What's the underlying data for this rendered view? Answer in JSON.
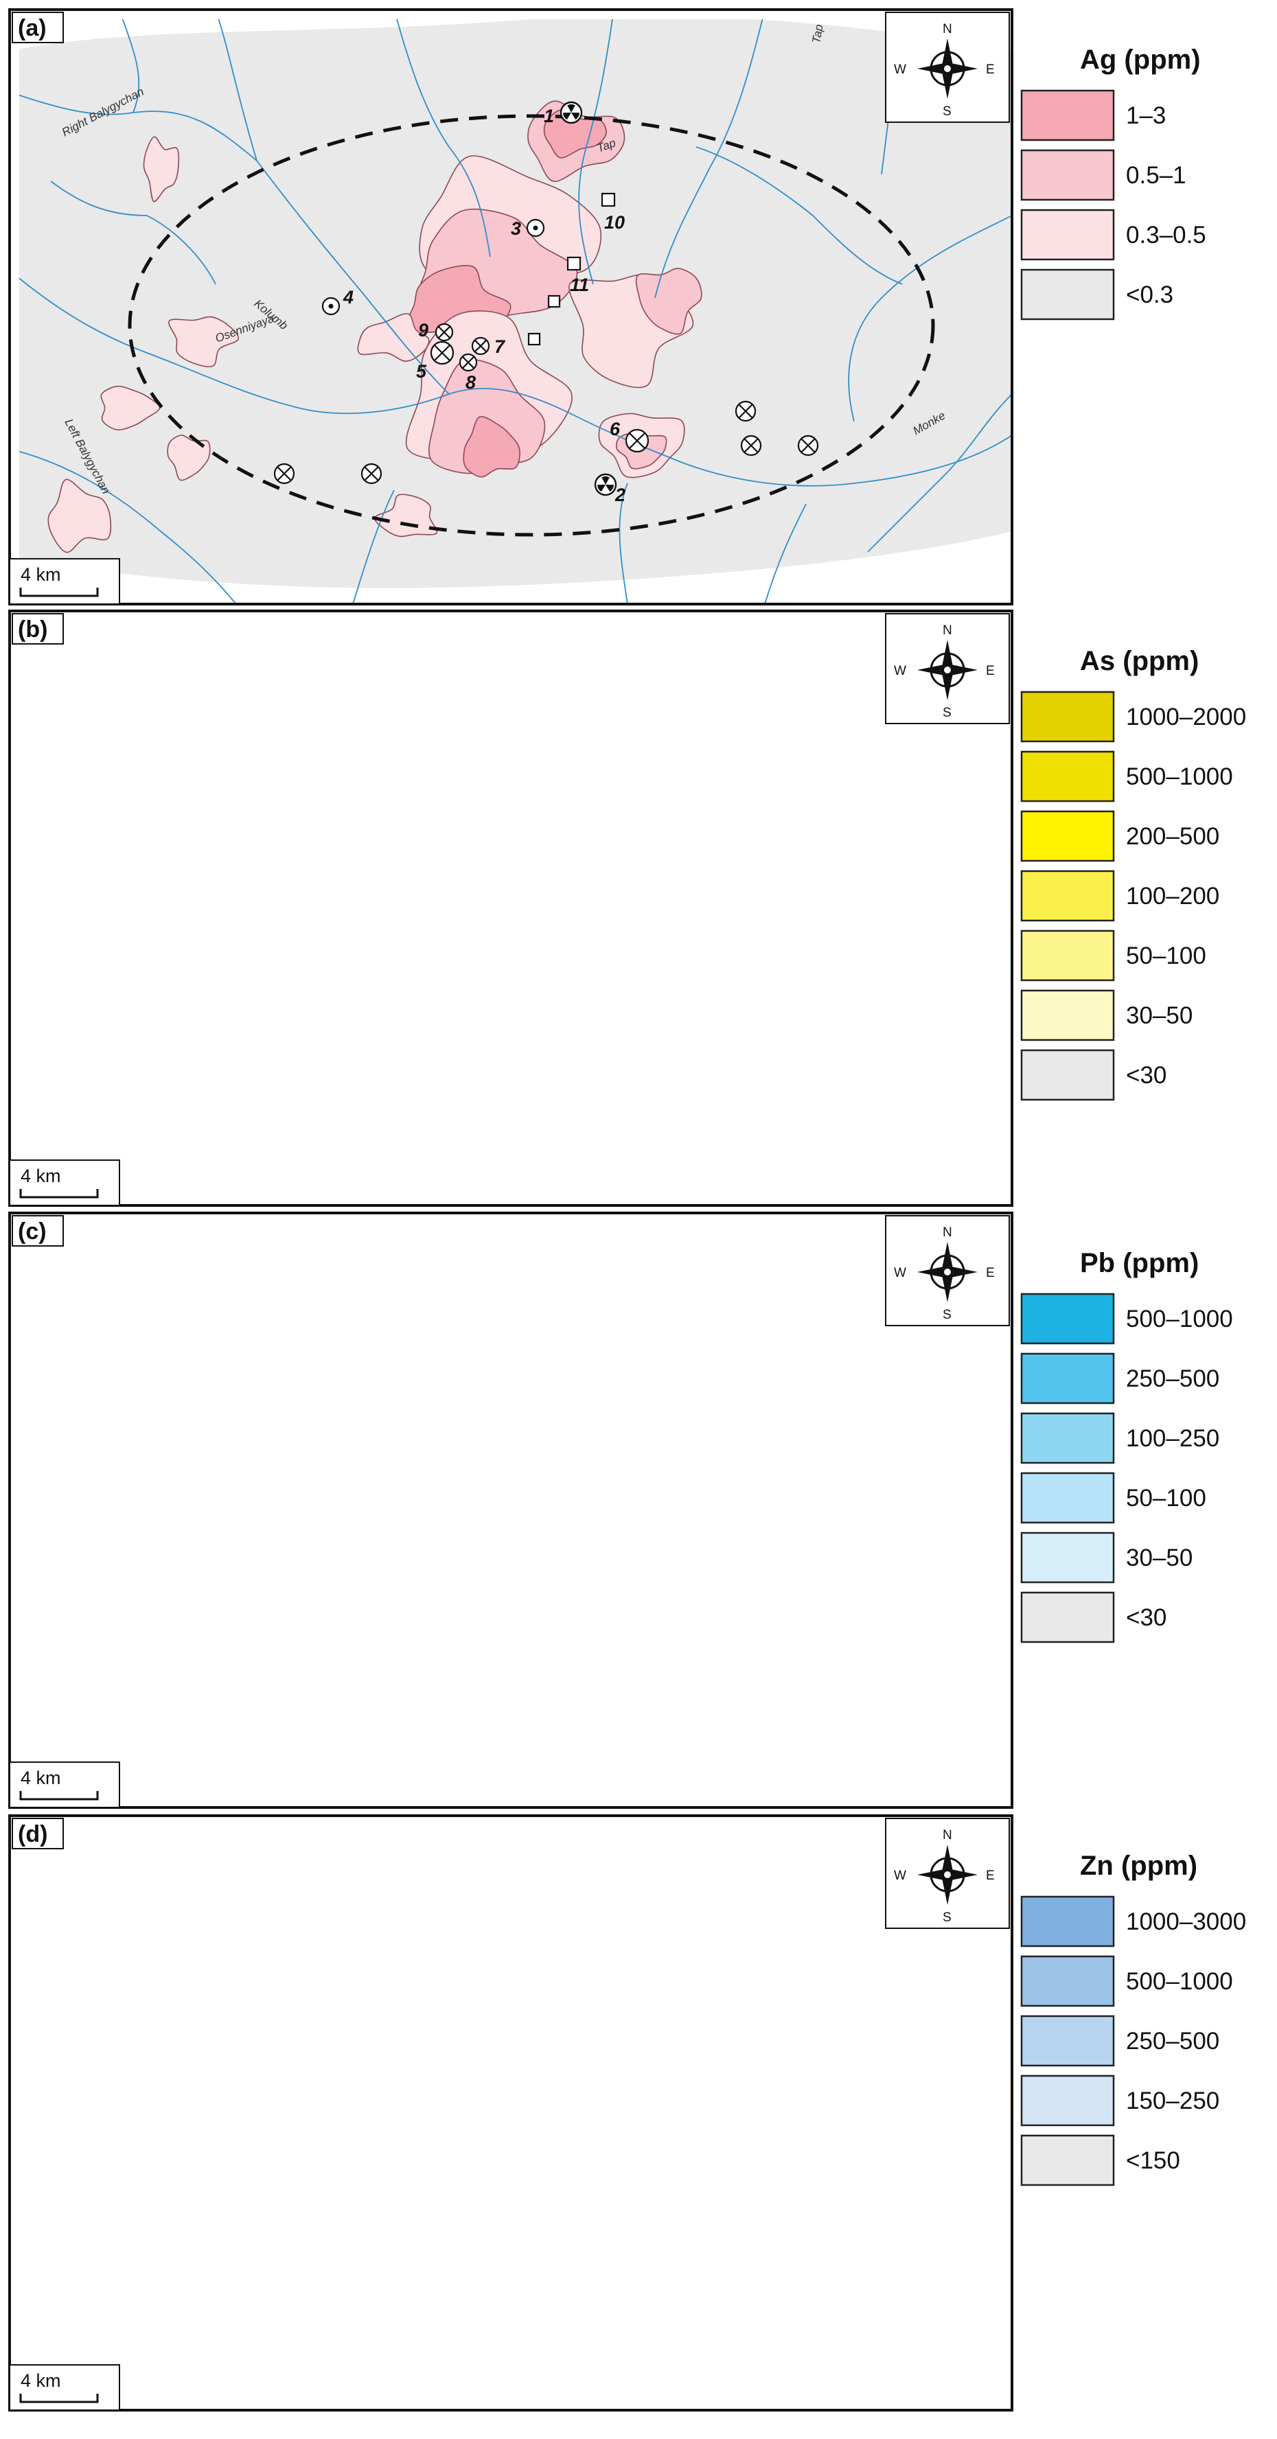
{
  "panels": [
    {
      "id": "a",
      "label": "(a)",
      "legend": {
        "title": "Ag (ppm)",
        "classes": [
          {
            "label": "1–3",
            "color": "#f4a9b5"
          },
          {
            "label": "0.5–1",
            "color": "#f8c6cf"
          },
          {
            "label": "0.3–0.5",
            "color": "#fbe0e4"
          },
          {
            "label": "<0.3",
            "color": "#e9e9e9"
          }
        ]
      },
      "outline_color": "#8a4a55"
    },
    {
      "id": "b",
      "label": "(b)",
      "legend": {
        "title": "As (ppm)",
        "classes": [
          {
            "label": "1000–2000",
            "color": "#e3d100"
          },
          {
            "label": "500–1000",
            "color": "#efe000"
          },
          {
            "label": "200–500",
            "color": "#fff200"
          },
          {
            "label": "100–200",
            "color": "#fbf04a"
          },
          {
            "label": "50–100",
            "color": "#fcf58c"
          },
          {
            "label": "30–50",
            "color": "#fdf9c4"
          },
          {
            "label": "<30",
            "color": "#e9e9e9"
          }
        ]
      },
      "outline_color": "#6b6630"
    },
    {
      "id": "c",
      "label": "(c)",
      "legend": {
        "title": "Pb (ppm)",
        "classes": [
          {
            "label": "500–1000",
            "color": "#1eb2e3"
          },
          {
            "label": "250–500",
            "color": "#52c3ec"
          },
          {
            "label": "100–250",
            "color": "#8dd6f3"
          },
          {
            "label": "50–100",
            "color": "#b6e3f7"
          },
          {
            "label": "30–50",
            "color": "#d6eefa"
          },
          {
            "label": "<30",
            "color": "#e9e9e9"
          }
        ]
      },
      "outline_color": "#3a5f70"
    },
    {
      "id": "d",
      "label": "(d)",
      "legend": {
        "title": "Zn (ppm)",
        "classes": [
          {
            "label": "1000–3000",
            "color": "#7fb0df"
          },
          {
            "label": "500–1000",
            "color": "#9cc2e7"
          },
          {
            "label": "250–500",
            "color": "#b8d4ef"
          },
          {
            "label": "150–250",
            "color": "#d3e4f5"
          },
          {
            "label": "<150",
            "color": "#e9e9e9"
          }
        ]
      },
      "outline_color": "#3d4f63"
    }
  ],
  "compass": {
    "n": "N",
    "s": "S",
    "e": "E",
    "w": "W"
  },
  "scale_bar": {
    "label": "4 km"
  },
  "river_names": {
    "right_balygychan": "Right Balygychan",
    "left_balygychan": "Left Balygychan",
    "kolumb": "Kolumb",
    "osenniyaya": "Osenniyaya",
    "tap": "Tap",
    "monke": "Monke"
  },
  "sites": [
    {
      "num": "1",
      "symbol": "radial"
    },
    {
      "num": "2",
      "symbol": "radial"
    },
    {
      "num": "3",
      "symbol": "dot"
    },
    {
      "num": "4",
      "symbol": "dot"
    },
    {
      "num": "5",
      "symbol": "cross-large"
    },
    {
      "num": "6",
      "symbol": "cross-large"
    },
    {
      "num": "7",
      "symbol": "cross"
    },
    {
      "num": "8",
      "symbol": "cross"
    },
    {
      "num": "9",
      "symbol": "cross"
    },
    {
      "num": "10",
      "symbol": "square"
    },
    {
      "num": "11",
      "symbol": "square"
    }
  ],
  "colors": {
    "background_gray": "#e9e9e9",
    "river": "#2f8fc9",
    "ellipse": "#111111"
  }
}
